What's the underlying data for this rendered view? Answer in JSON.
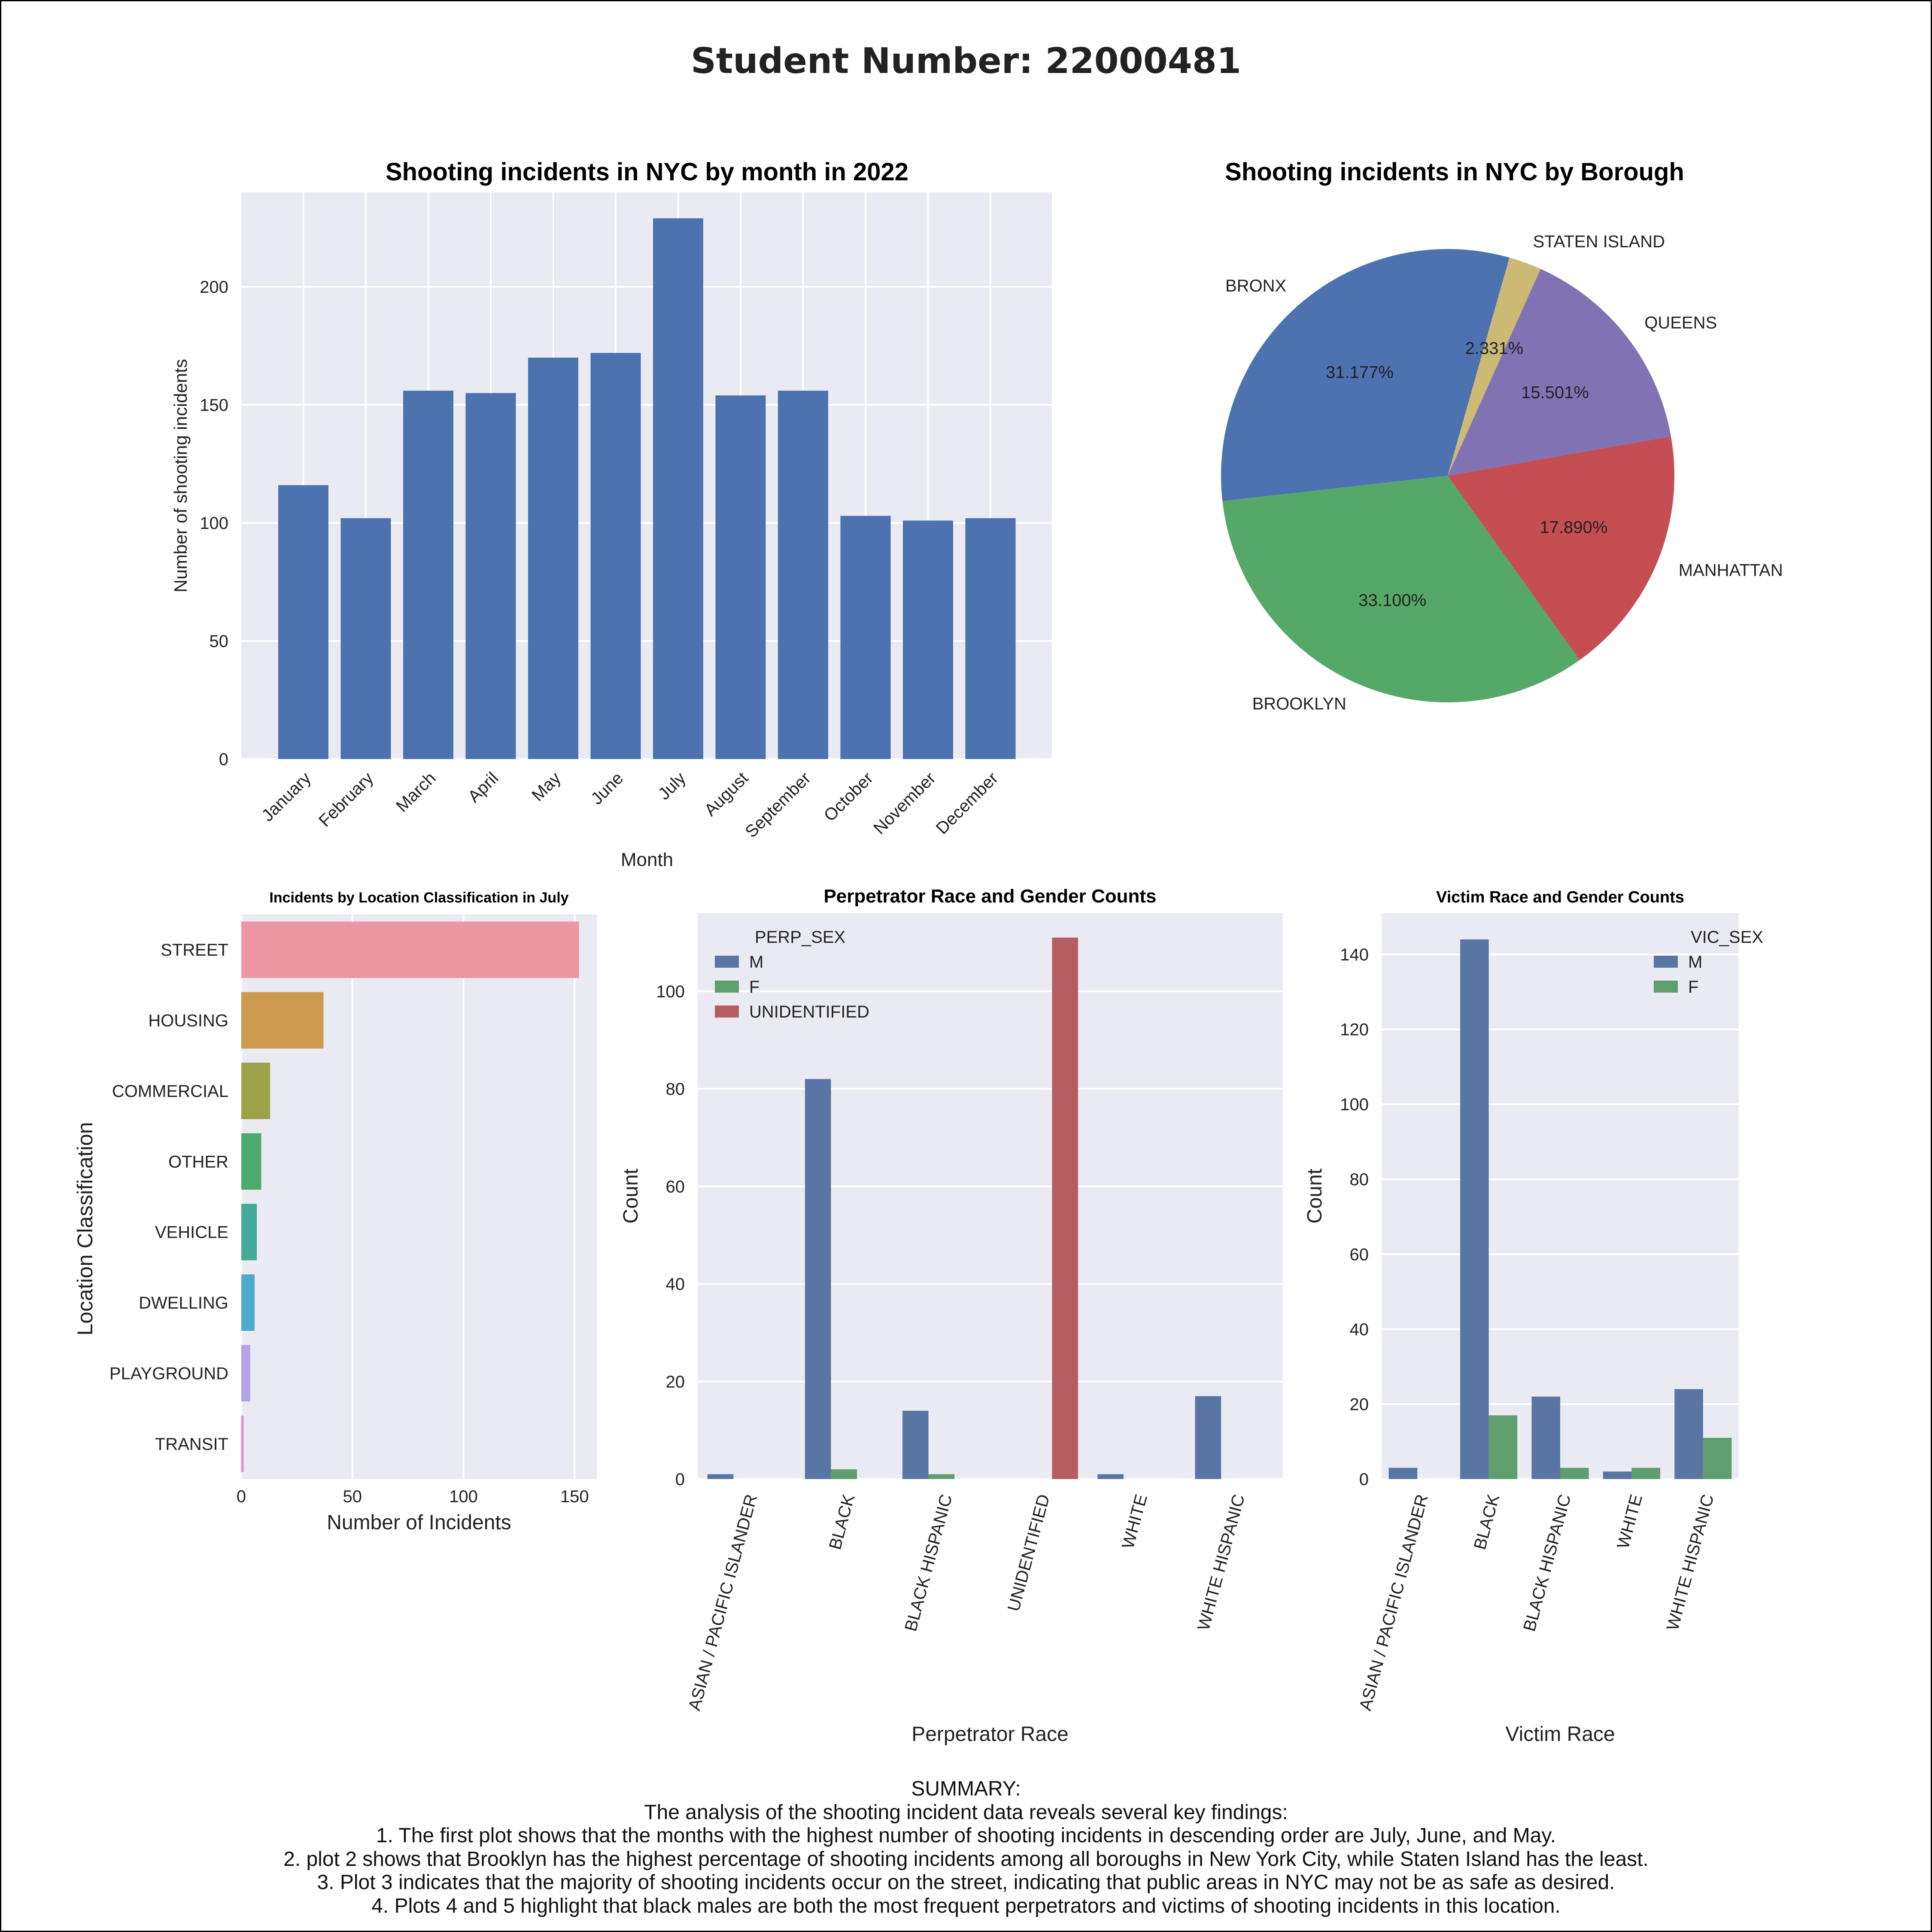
{
  "page": {
    "title": "Student Number: 22000481"
  },
  "summary": {
    "heading": "SUMMARY:",
    "intro": "The analysis of the shooting incident data reveals several key findings:",
    "points": [
      "1. The first plot shows that the months with the highest number of shooting incidents in descending order are July, June, and May.",
      "2. plot 2 shows that Brooklyn has the highest percentage of shooting incidents among all boroughs in New York City, while Staten Island has the least.",
      "3. Plot 3 indicates that the majority of shooting incidents occur on the street, indicating that public areas in NYC may not be as safe as desired.",
      "4. Plots 4 and 5 highlight that black males are both the most frequent perpetrators and victims of shooting incidents in this location."
    ]
  },
  "chart_data": [
    {
      "id": "monthly",
      "type": "bar",
      "title": "Shooting incidents in NYC by month in 2022",
      "xlabel": "Month",
      "ylabel": "Number of shooting incidents",
      "categories": [
        "January",
        "February",
        "March",
        "April",
        "May",
        "June",
        "July",
        "August",
        "September",
        "October",
        "November",
        "December"
      ],
      "values": [
        116,
        102,
        156,
        155,
        170,
        172,
        229,
        154,
        156,
        103,
        101,
        102
      ],
      "ylim": [
        0,
        240
      ],
      "yticks": [
        0,
        50,
        100,
        150,
        200
      ],
      "grid": true,
      "color": "#4c72b0"
    },
    {
      "id": "borough",
      "type": "pie",
      "title": "Shooting incidents in NYC by Borough",
      "slices": [
        {
          "label": "BRONX",
          "value": 31.177,
          "pct": "31.177%",
          "color": "#4c72b0"
        },
        {
          "label": "BROOKLYN",
          "value": 33.1,
          "pct": "33.100%",
          "color": "#55a868"
        },
        {
          "label": "MANHATTAN",
          "value": 17.89,
          "pct": "17.890%",
          "color": "#c44e52"
        },
        {
          "label": "QUEENS",
          "value": 15.501,
          "pct": "15.501%",
          "color": "#8172b3"
        },
        {
          "label": "STATEN ISLAND",
          "value": 2.331,
          "pct": "2.331%",
          "color": "#ccb974"
        }
      ]
    },
    {
      "id": "location",
      "type": "bar",
      "orientation": "horizontal",
      "title": "Incidents by Location Classification in July",
      "xlabel": "Number of Incidents",
      "ylabel": "Location Classification",
      "categories": [
        "STREET",
        "HOUSING",
        "COMMERCIAL",
        "OTHER",
        "VEHICLE",
        "DWELLING",
        "PLAYGROUND",
        "TRANSIT"
      ],
      "values": [
        152,
        37,
        13,
        9,
        7,
        6,
        4,
        1
      ],
      "colors": [
        "#ec96a3",
        "#cc9a4f",
        "#9ca247",
        "#4cab6c",
        "#44aa98",
        "#4fa9cf",
        "#b4a2eb",
        "#f07fd2"
      ],
      "xlim": [
        0,
        160
      ],
      "xticks": [
        0,
        50,
        100,
        150
      ],
      "grid": true
    },
    {
      "id": "perp",
      "type": "bar",
      "title": "Perpetrator Race and Gender Counts",
      "xlabel": "Perpetrator Race",
      "ylabel": "Count",
      "categories": [
        "ASIAN / PACIFIC ISLANDER",
        "BLACK",
        "BLACK HISPANIC",
        "UNIDENTIFIED",
        "WHITE",
        "WHITE HISPANIC"
      ],
      "legend_title": "PERP_SEX",
      "legend_position": "top-left",
      "series": [
        {
          "name": "M",
          "values": [
            1,
            82,
            14,
            0,
            1,
            17
          ],
          "color": "#5875a4"
        },
        {
          "name": "F",
          "values": [
            0,
            2,
            1,
            0,
            0,
            0
          ],
          "color": "#5f9e6e"
        },
        {
          "name": "UNIDENTIFIED",
          "values": [
            0,
            0,
            0,
            111,
            0,
            0
          ],
          "color": "#b55d60"
        }
      ],
      "ylim": [
        0,
        116
      ],
      "yticks": [
        0,
        20,
        40,
        60,
        80,
        100
      ],
      "grid": true
    },
    {
      "id": "victim",
      "type": "bar",
      "title": "Victim Race and Gender Counts",
      "xlabel": "Victim Race",
      "ylabel": "Count",
      "categories": [
        "ASIAN / PACIFIC ISLANDER",
        "BLACK",
        "BLACK HISPANIC",
        "WHITE",
        "WHITE HISPANIC"
      ],
      "legend_title": "VIC_SEX",
      "legend_position": "top-right",
      "series": [
        {
          "name": "M",
          "values": [
            3,
            144,
            22,
            2,
            24
          ],
          "color": "#5875a4"
        },
        {
          "name": "F",
          "values": [
            0,
            17,
            3,
            3,
            11
          ],
          "color": "#5f9e6e"
        }
      ],
      "ylim": [
        0,
        151
      ],
      "yticks": [
        0,
        20,
        40,
        60,
        80,
        100,
        120,
        140
      ],
      "grid": true
    }
  ]
}
